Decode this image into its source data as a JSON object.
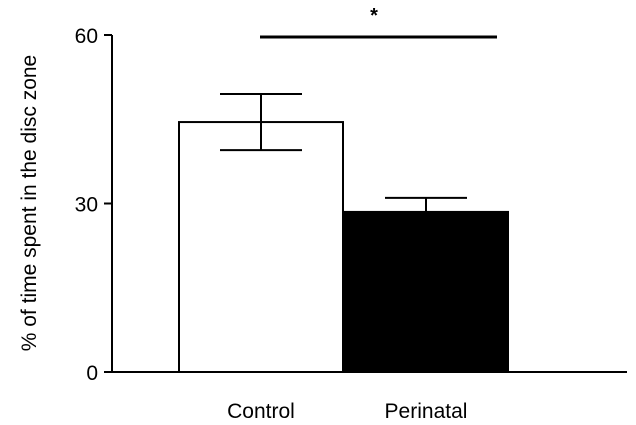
{
  "chart_data": {
    "type": "bar",
    "title": "",
    "xlabel": "",
    "ylabel": "% of time spent in the disc zone",
    "ylim": [
      0,
      60
    ],
    "yticks": [
      0,
      30,
      60
    ],
    "categories": [
      "Control",
      "Perinatal"
    ],
    "values": [
      44.5,
      28.5
    ],
    "errors": [
      5.0,
      2.5
    ],
    "bar_colors": [
      "#ffffff",
      "#000000"
    ],
    "significance": {
      "label": "*",
      "between": [
        "Control",
        "Perinatal"
      ]
    },
    "grid": false,
    "legend": "none"
  }
}
